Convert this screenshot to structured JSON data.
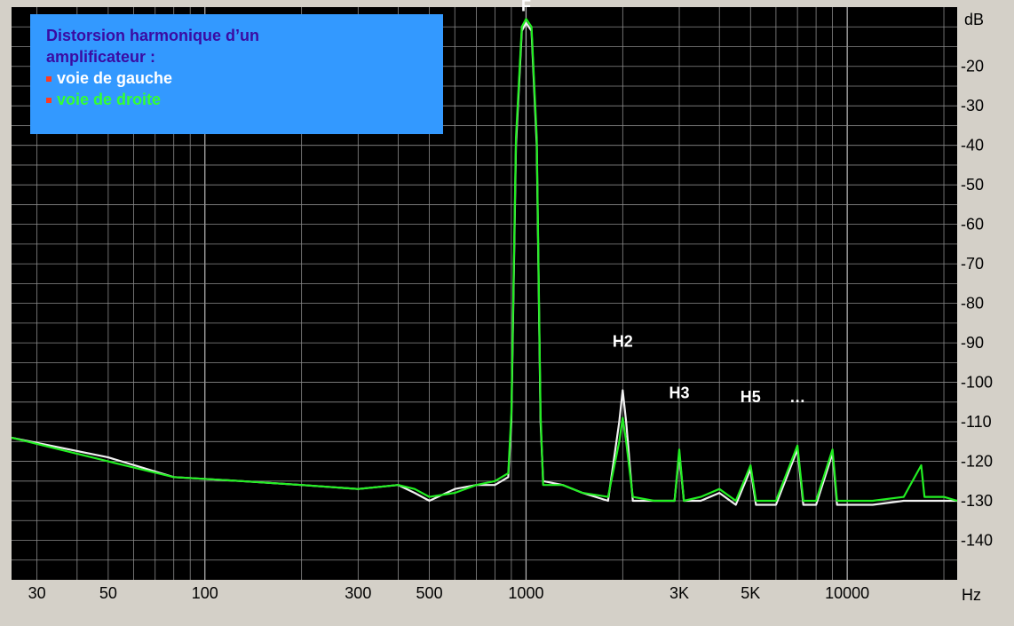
{
  "chart_data": {
    "type": "line",
    "title": "Distorsion harmonique d’un amplificateur :",
    "xunit": "Hz",
    "yunit": "dB",
    "x_scale": "log",
    "xlim": [
      25,
      22000
    ],
    "ylim": [
      -150,
      -5
    ],
    "grid": true,
    "x_ticks": [
      {
        "v": 30,
        "label": "30"
      },
      {
        "v": 50,
        "label": "50"
      },
      {
        "v": 100,
        "label": "100"
      },
      {
        "v": 300,
        "label": "300"
      },
      {
        "v": 500,
        "label": "500"
      },
      {
        "v": 1000,
        "label": "1000"
      },
      {
        "v": 3000,
        "label": "3K"
      },
      {
        "v": 5000,
        "label": "5K"
      },
      {
        "v": 10000,
        "label": "10000"
      }
    ],
    "y_ticks": [
      -20,
      -30,
      -40,
      -50,
      -60,
      -70,
      -80,
      -90,
      -100,
      -110,
      -120,
      -130,
      -140
    ],
    "annotations": [
      {
        "text": "F",
        "x": 1000,
        "y": -6
      },
      {
        "text": "H2",
        "x": 2000,
        "y": -91
      },
      {
        "text": "H3",
        "x": 3000,
        "y": -104
      },
      {
        "text": "H5",
        "x": 5000,
        "y": -105
      },
      {
        "text": "…",
        "x": 7000,
        "y": -105
      }
    ],
    "series": [
      {
        "name": "voie de  gauche",
        "color": "#f0f0f0",
        "points": [
          [
            25,
            -114
          ],
          [
            50,
            -119
          ],
          [
            80,
            -124
          ],
          [
            130,
            -125
          ],
          [
            200,
            -126
          ],
          [
            300,
            -127
          ],
          [
            400,
            -126
          ],
          [
            450,
            -128
          ],
          [
            500,
            -130
          ],
          [
            600,
            -127
          ],
          [
            700,
            -126
          ],
          [
            800,
            -126
          ],
          [
            880,
            -124
          ],
          [
            900,
            -110
          ],
          [
            930,
            -40
          ],
          [
            970,
            -11
          ],
          [
            1000,
            -9
          ],
          [
            1040,
            -11
          ],
          [
            1080,
            -40
          ],
          [
            1110,
            -110
          ],
          [
            1130,
            -125
          ],
          [
            1300,
            -126
          ],
          [
            1500,
            -128
          ],
          [
            1800,
            -130
          ],
          [
            1950,
            -110
          ],
          [
            2000,
            -102
          ],
          [
            2050,
            -110
          ],
          [
            2150,
            -130
          ],
          [
            2500,
            -130
          ],
          [
            2900,
            -130
          ],
          [
            3000,
            -118
          ],
          [
            3100,
            -130
          ],
          [
            3500,
            -130
          ],
          [
            4000,
            -128
          ],
          [
            4500,
            -131
          ],
          [
            5000,
            -122
          ],
          [
            5200,
            -131
          ],
          [
            6000,
            -131
          ],
          [
            7000,
            -117
          ],
          [
            7300,
            -131
          ],
          [
            8000,
            -131
          ],
          [
            9000,
            -118
          ],
          [
            9300,
            -131
          ],
          [
            12000,
            -131
          ],
          [
            15000,
            -130
          ],
          [
            20000,
            -130
          ],
          [
            22000,
            -130
          ]
        ]
      },
      {
        "name": "voie de droite",
        "color": "#22ee22",
        "points": [
          [
            25,
            -114
          ],
          [
            50,
            -120
          ],
          [
            80,
            -124
          ],
          [
            130,
            -125
          ],
          [
            200,
            -126
          ],
          [
            300,
            -127
          ],
          [
            400,
            -126
          ],
          [
            450,
            -127
          ],
          [
            500,
            -129
          ],
          [
            600,
            -128
          ],
          [
            700,
            -126
          ],
          [
            800,
            -125
          ],
          [
            880,
            -123
          ],
          [
            900,
            -108
          ],
          [
            930,
            -38
          ],
          [
            970,
            -10
          ],
          [
            1000,
            -8
          ],
          [
            1040,
            -10
          ],
          [
            1080,
            -38
          ],
          [
            1110,
            -108
          ],
          [
            1130,
            -126
          ],
          [
            1300,
            -126
          ],
          [
            1500,
            -128
          ],
          [
            1800,
            -129
          ],
          [
            1950,
            -115
          ],
          [
            2000,
            -109
          ],
          [
            2050,
            -115
          ],
          [
            2150,
            -129
          ],
          [
            2500,
            -130
          ],
          [
            2900,
            -130
          ],
          [
            3000,
            -117
          ],
          [
            3100,
            -130
          ],
          [
            3500,
            -129
          ],
          [
            4000,
            -127
          ],
          [
            4500,
            -130
          ],
          [
            5000,
            -121
          ],
          [
            5200,
            -130
          ],
          [
            6000,
            -130
          ],
          [
            7000,
            -116
          ],
          [
            7300,
            -130
          ],
          [
            8000,
            -130
          ],
          [
            9000,
            -117
          ],
          [
            9300,
            -130
          ],
          [
            12000,
            -130
          ],
          [
            15000,
            -129
          ],
          [
            17000,
            -121
          ],
          [
            17400,
            -129
          ],
          [
            20000,
            -129
          ],
          [
            22000,
            -130
          ]
        ]
      }
    ]
  },
  "legend": {
    "title_line1": "Distorsion harmonique d’un",
    "title_line2": "amplificateur :",
    "item_left": "voie de  gauche",
    "item_right": "voie de droite"
  }
}
